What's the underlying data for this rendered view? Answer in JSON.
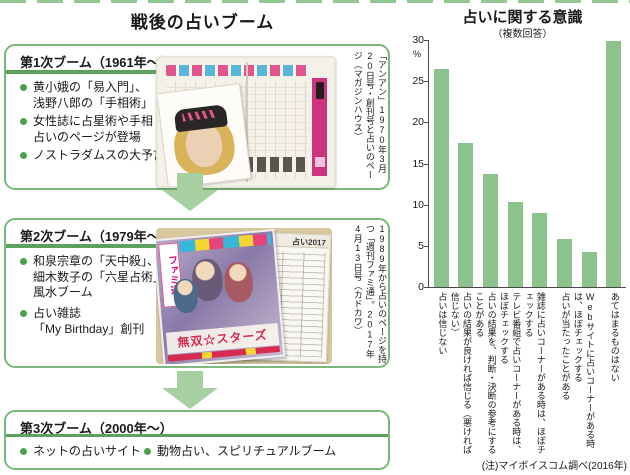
{
  "left_panel": {
    "title": "戦後の占いブーム",
    "booms": [
      {
        "header": "第1次ブーム（1961年〜）",
        "bullets": [
          "黄小娥の「易入門」、\n浅野八郎の「手相術」",
          "女性誌に占星術や手相\n占いのページが登場",
          "ノストラダムスの大予言"
        ],
        "photo_caption": "「アンアン」1970年3月20日号・創刊号と占いのページ（マガジンハウス）"
      },
      {
        "header": "第2次ブーム（1979年〜）",
        "bullets": [
          "和泉宗章の「天中殺」、\n細木数子の「六星占術」、\n風水ブーム",
          "占い雑誌\n「My Birthday」創刊"
        ],
        "photo_caption": "1989年から占いのページを持つ「週刊ファミ通」。2017年4月13日号（カドカワ）"
      },
      {
        "header": "第3次ブーム（2000年〜）",
        "bullets": [
          "ネットの占いサイト",
          "動物占い、スピリチュアルブーム"
        ]
      }
    ],
    "photo2_art": {
      "magazine_logo": "ファミ通",
      "magazine_banner": "無双☆スターズ",
      "newspaper_header": "占い2017"
    }
  },
  "chart_data": {
    "type": "bar",
    "title": "占いに関する意識",
    "subtitle": "（複数回答）",
    "unit": "%",
    "categories": [
      "占いは信じない",
      "占いの結果が良ければ信じる（悪ければ信じない）",
      "占いの結果を、判断・決断の参考にすることがある",
      "テレビ番組で占いコーナーがある時は、ほぼチェックする",
      "雑誌に占いコーナーがある時は、ほぼチェックする",
      "占いが当たったことがある",
      "Webサイトに占いコーナーがある時は、ほぼチェックする",
      "あてはまるものはない"
    ],
    "values": [
      26.5,
      17.5,
      13.7,
      10.3,
      9.0,
      5.8,
      4.2,
      29.9
    ],
    "ylim": [
      0,
      30
    ],
    "yticks": [
      0,
      5,
      10,
      15,
      20,
      25,
      30
    ],
    "grid": false,
    "legend": "none",
    "bar_color": "#8cc28c",
    "note": "(注)マイボイスコム調べ(2016年)"
  }
}
